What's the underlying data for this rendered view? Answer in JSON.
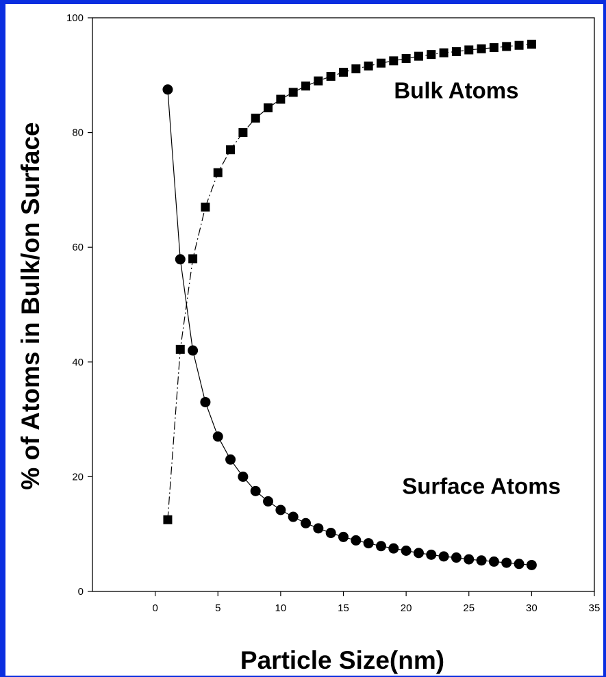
{
  "chart_data": {
    "type": "line",
    "title": "",
    "xlabel": "Particle Size(nm)",
    "ylabel": "% of Atoms in Bulk/on Surface",
    "xlim": [
      -5,
      35
    ],
    "ylim": [
      0,
      100
    ],
    "xticks": [
      0,
      5,
      10,
      15,
      20,
      25,
      30,
      35
    ],
    "yticks": [
      0,
      20,
      40,
      60,
      80,
      100
    ],
    "grid": false,
    "legend": "none",
    "x": [
      1,
      2,
      3,
      4,
      5,
      6,
      7,
      8,
      9,
      10,
      11,
      12,
      13,
      14,
      15,
      16,
      17,
      18,
      19,
      20,
      21,
      22,
      23,
      24,
      25,
      26,
      27,
      28,
      29,
      30
    ],
    "series": [
      {
        "name": "Bulk Atoms",
        "marker": "square",
        "line_style": "dashed",
        "color": "#000000",
        "values": [
          12.5,
          42.2,
          58,
          67,
          73,
          77,
          80,
          82.5,
          84.3,
          85.8,
          87,
          88.1,
          89,
          89.8,
          90.5,
          91.1,
          91.6,
          92.1,
          92.5,
          92.9,
          93.3,
          93.6,
          93.9,
          94.1,
          94.4,
          94.6,
          94.8,
          95,
          95.2,
          95.4
        ]
      },
      {
        "name": "Surface Atoms",
        "marker": "circle",
        "line_style": "solid",
        "color": "#000000",
        "values": [
          87.5,
          57.9,
          42,
          33,
          27,
          23,
          20,
          17.5,
          15.7,
          14.2,
          13,
          11.9,
          11,
          10.2,
          9.5,
          8.9,
          8.4,
          7.9,
          7.5,
          7.1,
          6.7,
          6.4,
          6.1,
          5.9,
          5.6,
          5.4,
          5.2,
          5,
          4.8,
          4.6
        ]
      }
    ],
    "annotations": [
      {
        "text": "Bulk Atoms",
        "x": 24,
        "y": 86
      },
      {
        "text": "Surface Atoms",
        "x": 26,
        "y": 17
      }
    ]
  }
}
